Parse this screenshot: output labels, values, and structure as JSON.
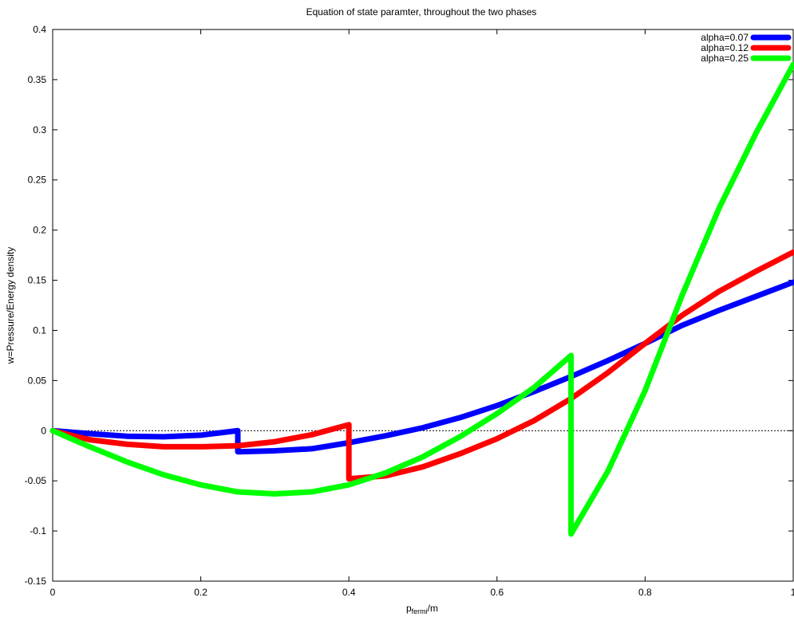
{
  "chart_data": {
    "type": "line",
    "title": "Equation of state paramter, throughout the two phases",
    "xlabel": {
      "main": "p",
      "sub": "fermi",
      "suffix": "/m"
    },
    "ylabel": "w=Pressure/Energy density",
    "xlim": [
      0,
      1
    ],
    "ylim": [
      -0.15,
      0.4
    ],
    "x_ticks": [
      0,
      0.2,
      0.4,
      0.6,
      0.8,
      1.0
    ],
    "x_tick_labels": [
      "0",
      "0.2",
      "0.4",
      "0.6",
      "0.8",
      "1"
    ],
    "y_ticks": [
      -0.15,
      -0.1,
      -0.05,
      0,
      0.05,
      0.1,
      0.15,
      0.2,
      0.25,
      0.3,
      0.35,
      0.4
    ],
    "y_tick_labels": [
      "-0.15",
      "-0.1",
      "-0.05",
      "0",
      "0.05",
      "0.1",
      "0.15",
      "0.2",
      "0.25",
      "0.3",
      "0.35",
      "0.4"
    ],
    "grid": false,
    "zero_line": true,
    "legend_position": "top-right",
    "series": [
      {
        "name": "alpha=0.07",
        "color": "#0000ff",
        "points": [
          [
            0,
            0
          ],
          [
            0.05,
            -0.003
          ],
          [
            0.1,
            -0.0055
          ],
          [
            0.15,
            -0.006
          ],
          [
            0.2,
            -0.0045
          ],
          [
            0.25,
            0
          ],
          [
            0.25,
            -0.021
          ],
          [
            0.3,
            -0.02
          ],
          [
            0.35,
            -0.018
          ],
          [
            0.4,
            -0.012
          ],
          [
            0.45,
            -0.005
          ],
          [
            0.5,
            0.003
          ],
          [
            0.55,
            0.013
          ],
          [
            0.6,
            0.025
          ],
          [
            0.65,
            0.039
          ],
          [
            0.7,
            0.054
          ],
          [
            0.75,
            0.07
          ],
          [
            0.8,
            0.087
          ],
          [
            0.85,
            0.105
          ],
          [
            0.9,
            0.12
          ],
          [
            0.95,
            0.134
          ],
          [
            1.0,
            0.148
          ]
        ]
      },
      {
        "name": "alpha=0.12",
        "color": "#ff0000",
        "points": [
          [
            0,
            0
          ],
          [
            0.05,
            -0.009
          ],
          [
            0.1,
            -0.0135
          ],
          [
            0.15,
            -0.016
          ],
          [
            0.2,
            -0.016
          ],
          [
            0.25,
            -0.015
          ],
          [
            0.3,
            -0.011
          ],
          [
            0.35,
            -0.004
          ],
          [
            0.4,
            0.006
          ],
          [
            0.4,
            -0.048
          ],
          [
            0.45,
            -0.045
          ],
          [
            0.5,
            -0.036
          ],
          [
            0.55,
            -0.023
          ],
          [
            0.6,
            -0.008
          ],
          [
            0.65,
            0.01
          ],
          [
            0.7,
            0.032
          ],
          [
            0.75,
            0.058
          ],
          [
            0.8,
            0.087
          ],
          [
            0.85,
            0.115
          ],
          [
            0.9,
            0.139
          ],
          [
            0.95,
            0.159
          ],
          [
            1.0,
            0.178
          ]
        ]
      },
      {
        "name": "alpha=0.25",
        "color": "#00ff00",
        "points": [
          [
            0,
            0
          ],
          [
            0.05,
            -0.016
          ],
          [
            0.1,
            -0.031
          ],
          [
            0.15,
            -0.044
          ],
          [
            0.2,
            -0.054
          ],
          [
            0.25,
            -0.061
          ],
          [
            0.3,
            -0.063
          ],
          [
            0.35,
            -0.061
          ],
          [
            0.4,
            -0.054
          ],
          [
            0.45,
            -0.042
          ],
          [
            0.5,
            -0.026
          ],
          [
            0.55,
            -0.006
          ],
          [
            0.6,
            0.017
          ],
          [
            0.65,
            0.043
          ],
          [
            0.7,
            0.075
          ],
          [
            0.7,
            -0.103
          ],
          [
            0.75,
            -0.04
          ],
          [
            0.8,
            0.04
          ],
          [
            0.85,
            0.135
          ],
          [
            0.9,
            0.222
          ],
          [
            0.95,
            0.297
          ],
          [
            1.0,
            0.365
          ]
        ]
      }
    ]
  }
}
